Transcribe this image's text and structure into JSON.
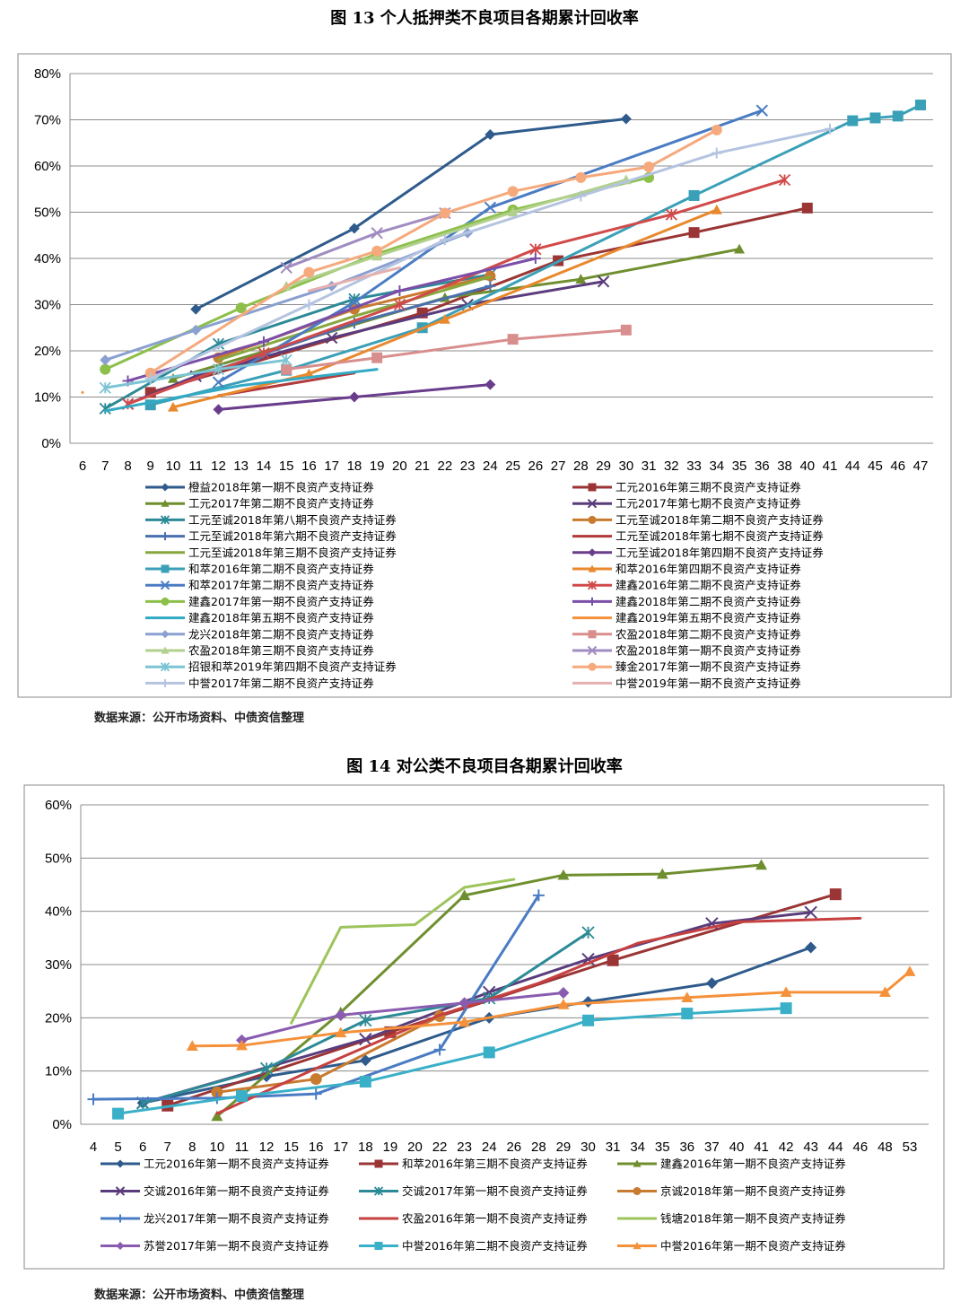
{
  "figure13": {
    "title": "图 13 个人抵押类不良项目各期累计回收率",
    "source": "数据来源：公开市场资料、中债资信整理",
    "chart_data": {
      "type": "line",
      "categories": [
        "6",
        "7",
        "8",
        "9",
        "10",
        "11",
        "12",
        "13",
        "14",
        "15",
        "16",
        "17",
        "18",
        "19",
        "20",
        "21",
        "22",
        "23",
        "24",
        "25",
        "26",
        "27",
        "28",
        "29",
        "30",
        "31",
        "32",
        "33",
        "34",
        "35",
        "36",
        "38",
        "40",
        "41",
        "44",
        "45",
        "46",
        "47"
      ],
      "yticks": [
        "0%",
        "10%",
        "20%",
        "30%",
        "40%",
        "50%",
        "60%",
        "70%",
        "80%"
      ],
      "ylim": [
        0,
        80
      ],
      "series": [
        {
          "name": "橙益2018年第一期不良资产支持证券",
          "color": "#2e5b8c",
          "marker": "diamond",
          "points": [
            [
              "11",
              29
            ],
            [
              "18",
              46.5
            ],
            [
              "24",
              66.8
            ],
            [
              "30",
              70.2
            ]
          ]
        },
        {
          "name": "工元2016年第三期不良资产支持证券",
          "color": "#9b3535",
          "marker": "square",
          "points": [
            [
              "9",
              11
            ],
            [
              "21",
              28.2
            ],
            [
              "27",
              39.5
            ],
            [
              "33",
              45.6
            ],
            [
              "40",
              50.9
            ]
          ]
        },
        {
          "name": "工元2017年第二期不良资产支持证券",
          "color": "#6f8f2f",
          "marker": "triangle",
          "points": [
            [
              "10",
              14
            ],
            [
              "22",
              31.5
            ],
            [
              "28",
              35.5
            ],
            [
              "35",
              42
            ]
          ]
        },
        {
          "name": "工元2017年第七期不良资产支持证券",
          "color": "#5a3c7c",
          "marker": "x",
          "points": [
            [
              "8",
              8.5
            ],
            [
              "11",
              14.5
            ],
            [
              "17",
              22.8
            ],
            [
              "23",
              30
            ],
            [
              "29",
              35
            ]
          ]
        },
        {
          "name": "工元至诚2018年第八期不良资产支持证券",
          "color": "#2c8a96",
          "marker": "star",
          "points": [
            [
              "7",
              7.5
            ],
            [
              "12",
              21.5
            ],
            [
              "18",
              31.2
            ],
            [
              "24",
              36.5
            ]
          ]
        },
        {
          "name": "工元至诚2018年第二期不良资产支持证券",
          "color": "#c87a2f",
          "marker": "circle",
          "points": [
            [
              "12",
              18.5
            ],
            [
              "18",
              29
            ],
            [
              "24",
              36.2
            ]
          ]
        },
        {
          "name": "工元至诚2018年第六期不良资产支持证券",
          "color": "#4a6fae",
          "marker": "plus",
          "points": [
            [
              "12",
              16
            ],
            [
              "18",
              26
            ],
            [
              "24",
              34
            ]
          ]
        },
        {
          "name": "工元至诚2018年第七期不良资产支持证券",
          "color": "#b33a3a",
          "marker": "none",
          "points": [
            [
              "12",
              10.3
            ],
            [
              "18",
              15.2
            ]
          ]
        },
        {
          "name": "工元至诚2018年第三期不良资产支持证券",
          "color": "#86a83e",
          "marker": "none",
          "points": [
            [
              "12",
              18
            ],
            [
              "18",
              27.5
            ],
            [
              "24",
              36
            ]
          ]
        },
        {
          "name": "工元至诚2018年第四期不良资产支持证券",
          "color": "#6a3d8c",
          "marker": "diamond",
          "points": [
            [
              "12",
              7.3
            ],
            [
              "18",
              10
            ],
            [
              "24",
              12.7
            ]
          ]
        },
        {
          "name": "和萃2016年第二期不良资产支持证券",
          "color": "#3aa0b8",
          "marker": "square",
          "points": [
            [
              "9",
              8.3
            ],
            [
              "15",
              15.8
            ],
            [
              "21",
              25
            ],
            [
              "33",
              53.6
            ],
            [
              "44",
              69.8
            ],
            [
              "45",
              70.4
            ],
            [
              "46",
              70.8
            ],
            [
              "47",
              73.2
            ]
          ]
        },
        {
          "name": "和萃2016年第四期不良资产支持证券",
          "color": "#e8892e",
          "marker": "triangle",
          "points": [
            [
              "10",
              7.8
            ],
            [
              "16",
              15
            ],
            [
              "22",
              26.8
            ],
            [
              "34",
              50.5
            ]
          ]
        },
        {
          "name": "和萃2017年第二期不良资产支持证券",
          "color": "#4a7cc4",
          "marker": "x",
          "points": [
            [
              "12",
              13.2
            ],
            [
              "18",
              30.5
            ],
            [
              "24",
              51
            ],
            [
              "36",
              72
            ]
          ]
        },
        {
          "name": "建鑫2016年第二期不良资产支持证券",
          "color": "#d04a4a",
          "marker": "star",
          "points": [
            [
              "8",
              8.5
            ],
            [
              "14",
              19.5
            ],
            [
              "20",
              30
            ],
            [
              "26",
              42
            ],
            [
              "32",
              49.5
            ],
            [
              "38",
              57
            ]
          ]
        },
        {
          "name": "建鑫2017年第一期不良资产支持证券",
          "color": "#8cc04a",
          "marker": "circle",
          "points": [
            [
              "7",
              16
            ],
            [
              "13",
              29.3
            ],
            [
              "19",
              41
            ],
            [
              "25",
              50.5
            ],
            [
              "31",
              57.5
            ]
          ]
        },
        {
          "name": "建鑫2018年第二期不良资产支持证券",
          "color": "#7b4fa8",
          "marker": "plus",
          "points": [
            [
              "8",
              13.5
            ],
            [
              "14",
              22
            ],
            [
              "20",
              33
            ],
            [
              "26",
              40
            ]
          ]
        },
        {
          "name": "建鑫2018年第五期不良资产支持证券",
          "color": "#33aac4",
          "marker": "none",
          "points": [
            [
              "7",
              7
            ],
            [
              "13",
              12.5
            ],
            [
              "19",
              16
            ]
          ]
        },
        {
          "name": "建鑫2019年第五期不良资产支持证券",
          "color": "#f5913a",
          "marker": "none",
          "points": [
            [
              "6",
              11
            ],
            [
              "6",
              11
            ]
          ]
        },
        {
          "name": "龙兴2018年第二期不良资产支持证券",
          "color": "#8aa0d0",
          "marker": "diamond",
          "points": [
            [
              "7",
              18
            ],
            [
              "11",
              24.5
            ],
            [
              "17",
              34
            ],
            [
              "23",
              45.5
            ]
          ]
        },
        {
          "name": "农盈2018年第二期不良资产支持证券",
          "color": "#d98e8e",
          "marker": "square",
          "points": [
            [
              "15",
              16
            ],
            [
              "19",
              18.5
            ],
            [
              "25",
              22.5
            ],
            [
              "30",
              24.5
            ]
          ]
        },
        {
          "name": "农盈2018年第三期不良资产支持证券",
          "color": "#b2d08e",
          "marker": "triangle",
          "points": [
            [
              "15",
              34
            ],
            [
              "19",
              40.5
            ],
            [
              "25",
              50
            ],
            [
              "30",
              57
            ]
          ]
        },
        {
          "name": "农盈2018年第一期不良资产支持证券",
          "color": "#a08cc0",
          "marker": "x",
          "points": [
            [
              "15",
              38
            ],
            [
              "19",
              45.5
            ],
            [
              "22",
              49.8
            ]
          ]
        },
        {
          "name": "招银和萃2019年第四期不良资产支持证券",
          "color": "#7cc4d4",
          "marker": "star",
          "points": [
            [
              "7",
              12
            ],
            [
              "12",
              16
            ],
            [
              "15",
              18
            ]
          ]
        },
        {
          "name": "臻金2017年第一期不良资产支持证券",
          "color": "#f5a97c",
          "marker": "circle",
          "points": [
            [
              "9",
              15.2
            ],
            [
              "16",
              37
            ],
            [
              "19",
              41.6
            ],
            [
              "22",
              49.8
            ],
            [
              "25",
              54.5
            ],
            [
              "28",
              57.5
            ],
            [
              "31",
              59.8
            ],
            [
              "34",
              67.8
            ]
          ]
        },
        {
          "name": "中誉2017年第二期不良资产支持证券",
          "color": "#b4c4e0",
          "marker": "plus",
          "points": [
            [
              "9",
              14
            ],
            [
              "16",
              30
            ],
            [
              "22",
              44
            ],
            [
              "28",
              53.5
            ],
            [
              "34",
              62.8
            ],
            [
              "41",
              68
            ]
          ]
        },
        {
          "name": "中誉2019年第一期不良资产支持证券",
          "color": "#e4b0b0",
          "marker": "none",
          "points": [
            [
              "16",
              33
            ],
            [
              "20",
              38
            ]
          ]
        }
      ]
    }
  },
  "figure14": {
    "title": "图 14 对公类不良项目各期累计回收率",
    "source": "数据来源：公开市场资料、中债资信整理",
    "chart_data": {
      "type": "line",
      "categories": [
        "4",
        "5",
        "6",
        "7",
        "8",
        "10",
        "11",
        "12",
        "15",
        "16",
        "17",
        "18",
        "19",
        "20",
        "22",
        "23",
        "24",
        "26",
        "28",
        "29",
        "30",
        "31",
        "34",
        "35",
        "36",
        "37",
        "40",
        "41",
        "42",
        "43",
        "44",
        "46",
        "48",
        "53"
      ],
      "yticks": [
        "0%",
        "10%",
        "20%",
        "30%",
        "40%",
        "50%",
        "60%"
      ],
      "ylim": [
        0,
        60
      ],
      "series": [
        {
          "name": "工元2016年第一期不良资产支持证券",
          "color": "#2e5b8c",
          "marker": "diamond",
          "points": [
            [
              "6",
              4
            ],
            [
              "12",
              9
            ],
            [
              "18",
              12
            ],
            [
              "24",
              20
            ],
            [
              "30",
              23
            ],
            [
              "37",
              26.5
            ],
            [
              "43",
              33.2
            ]
          ]
        },
        {
          "name": "和萃2016年第三期不良资产支持证券",
          "color": "#9b3535",
          "marker": "square",
          "points": [
            [
              "7",
              3.5
            ],
            [
              "19",
              17.3
            ],
            [
              "31",
              30.8
            ],
            [
              "44",
              43.2
            ]
          ]
        },
        {
          "name": "建鑫2016年第一期不良资产支持证券",
          "color": "#6f8f2f",
          "marker": "triangle",
          "points": [
            [
              "10",
              1.5
            ],
            [
              "17",
              21
            ],
            [
              "23",
              43
            ],
            [
              "29",
              46.8
            ],
            [
              "35",
              47
            ],
            [
              "41",
              48.7
            ]
          ]
        },
        {
          "name": "交诚2016年第一期不良资产支持证券",
          "color": "#5a3c7c",
          "marker": "x",
          "points": [
            [
              "6",
              4
            ],
            [
              "18",
              16
            ],
            [
              "24",
              24.8
            ],
            [
              "30",
              31
            ],
            [
              "37",
              37.7
            ],
            [
              "43",
              39.8
            ]
          ]
        },
        {
          "name": "交诚2017年第一期不良资产支持证券",
          "color": "#2c8a96",
          "marker": "star",
          "points": [
            [
              "6",
              4
            ],
            [
              "12",
              10.5
            ],
            [
              "18",
              19.5
            ],
            [
              "24",
              23.7
            ],
            [
              "30",
              36
            ]
          ]
        },
        {
          "name": "京诚2018年第一期不良资产支持证券",
          "color": "#c87a2f",
          "marker": "circle",
          "points": [
            [
              "10",
              6
            ],
            [
              "16",
              8.5
            ],
            [
              "22",
              20.3
            ]
          ]
        },
        {
          "name": "龙兴2017年第一期不良资产支持证券",
          "color": "#4a7cc4",
          "marker": "plus",
          "points": [
            [
              "4",
              4.7
            ],
            [
              "10",
              4.9
            ],
            [
              "16",
              5.7
            ],
            [
              "22",
              14
            ],
            [
              "28",
              43
            ]
          ]
        },
        {
          "name": "农盈2016年第一期不良资产支持证券",
          "color": "#c64040",
          "marker": "none",
          "points": [
            [
              "10",
              2
            ],
            [
              "16",
              10.5
            ],
            [
              "22",
              20.5
            ],
            [
              "28",
              26.5
            ],
            [
              "34",
              34
            ],
            [
              "40",
              38
            ],
            [
              "46",
              38.7
            ]
          ]
        },
        {
          "name": "钱塘2018年第一期不良资产支持证券",
          "color": "#9cc45a",
          "marker": "none",
          "points": [
            [
              "15",
              19
            ],
            [
              "17",
              37
            ],
            [
              "20",
              37.5
            ],
            [
              "23",
              44.5
            ],
            [
              "26",
              46
            ]
          ]
        },
        {
          "name": "苏誉2017年第一期不良资产支持证券",
          "color": "#8a5cb0",
          "marker": "diamond",
          "points": [
            [
              "11",
              15.8
            ],
            [
              "17",
              20.5
            ],
            [
              "23",
              22.8
            ],
            [
              "29",
              24.7
            ]
          ]
        },
        {
          "name": "中誉2016年第二期不良资产支持证券",
          "color": "#3ab0c8",
          "marker": "square",
          "points": [
            [
              "5",
              2
            ],
            [
              "11",
              5.3
            ],
            [
              "18",
              8
            ],
            [
              "24",
              13.5
            ],
            [
              "30",
              19.5
            ],
            [
              "36",
              20.8
            ],
            [
              "42",
              21.8
            ]
          ]
        },
        {
          "name": "中誉2016年第一期不良资产支持证券",
          "color": "#f5913a",
          "marker": "triangle",
          "points": [
            [
              "8",
              14.7
            ],
            [
              "11",
              14.8
            ],
            [
              "17",
              17.2
            ],
            [
              "23",
              19.2
            ],
            [
              "29",
              22.5
            ],
            [
              "36",
              23.8
            ],
            [
              "42",
              24.8
            ],
            [
              "48",
              24.8
            ],
            [
              "53",
              28.7
            ]
          ]
        }
      ]
    }
  }
}
